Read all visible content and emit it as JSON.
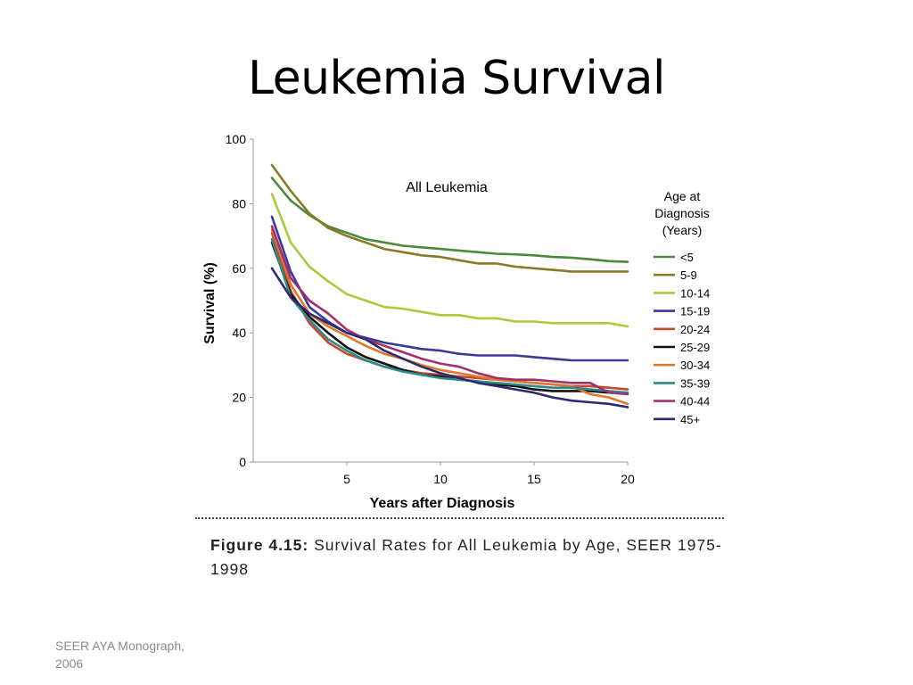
{
  "slide": {
    "title": "Leukemia Survival",
    "caption_label": "Figure 4.15:",
    "caption_text": " Survival Rates for All Leukemia by Age, SEER 1975-1998",
    "source_line1": "SEER AYA Monograph,",
    "source_line2": "2006"
  },
  "chart_data": {
    "type": "line",
    "title": "All Leukemia",
    "xlabel": "Years after Diagnosis",
    "ylabel": "Survival (%)",
    "xlim": [
      0,
      20
    ],
    "ylim": [
      0,
      100
    ],
    "xticks": [
      5,
      10,
      15,
      20
    ],
    "yticks": [
      0,
      20,
      40,
      60,
      80,
      100
    ],
    "grid": false,
    "legend_title": [
      "Age at",
      "Diagnosis",
      "(Years)"
    ],
    "legend_position": "right",
    "x": [
      1,
      2,
      3,
      4,
      5,
      6,
      7,
      8,
      9,
      10,
      11,
      12,
      13,
      14,
      15,
      16,
      17,
      18,
      19,
      20
    ],
    "series": [
      {
        "name": "<5",
        "color": "#4a8a3a",
        "values": [
          88,
          81,
          76.5,
          73,
          71,
          69,
          68,
          67,
          66.5,
          66,
          65.5,
          65,
          64.5,
          64.3,
          64,
          63.5,
          63.3,
          62.8,
          62.2,
          62
        ]
      },
      {
        "name": "5-9",
        "color": "#8a7a25",
        "values": [
          92,
          84,
          77,
          72.5,
          70,
          68,
          66,
          65,
          64,
          63.5,
          62.5,
          61.5,
          61.5,
          60.5,
          60,
          59.5,
          59,
          59,
          59,
          59
        ]
      },
      {
        "name": "10-14",
        "color": "#a6cc3a",
        "values": [
          83,
          68,
          60.5,
          56,
          52,
          50,
          48,
          47.5,
          46.5,
          45.5,
          45.5,
          44.5,
          44.5,
          43.5,
          43.5,
          43,
          43,
          43,
          43,
          42
        ]
      },
      {
        "name": "15-19",
        "color": "#3a3a9a",
        "values": [
          76,
          59,
          48,
          43.5,
          40,
          38.5,
          37,
          36,
          35,
          34.5,
          33.5,
          33,
          33,
          33,
          32.5,
          32,
          31.5,
          31.5,
          31.5,
          31.5
        ]
      },
      {
        "name": "20-24",
        "color": "#c9472e",
        "values": [
          71,
          53,
          43,
          37,
          33.5,
          31.5,
          29.5,
          28.5,
          27.5,
          27,
          26.5,
          26,
          25.5,
          25,
          24.5,
          24,
          23.5,
          23.5,
          23,
          22.5
        ]
      },
      {
        "name": "25-29",
        "color": "#111111",
        "values": [
          68,
          52,
          45,
          40,
          35.5,
          32.5,
          30.5,
          28.5,
          27,
          26.5,
          25.5,
          25,
          24,
          23.5,
          22.5,
          22,
          22,
          22,
          21.5,
          21.5
        ]
      },
      {
        "name": "30-34",
        "color": "#e0772a",
        "values": [
          72,
          55,
          46,
          42,
          39,
          36,
          33.5,
          32,
          30,
          28.5,
          27.5,
          26.5,
          25.5,
          25,
          24.5,
          24,
          23.5,
          21,
          20,
          18
        ]
      },
      {
        "name": "35-39",
        "color": "#2f8a8a",
        "values": [
          69,
          51,
          44,
          38,
          34.5,
          31.5,
          29.5,
          28,
          27,
          26,
          25.5,
          25,
          24.5,
          24,
          23.5,
          23,
          23,
          22.5,
          22,
          21.5
        ]
      },
      {
        "name": "40-44",
        "color": "#a0306e",
        "values": [
          73,
          57,
          50,
          46,
          41,
          38,
          36,
          34,
          32,
          30.5,
          29.5,
          27.5,
          26,
          25.5,
          25.5,
          25,
          24.5,
          24.5,
          21.5,
          21
        ]
      },
      {
        "name": "45+",
        "color": "#2e2a70",
        "values": [
          60,
          51,
          46,
          43,
          40,
          38,
          34.5,
          32,
          29.5,
          27.5,
          26,
          24.5,
          23.5,
          22.5,
          21.5,
          20,
          19,
          18.5,
          18,
          17
        ]
      }
    ]
  }
}
